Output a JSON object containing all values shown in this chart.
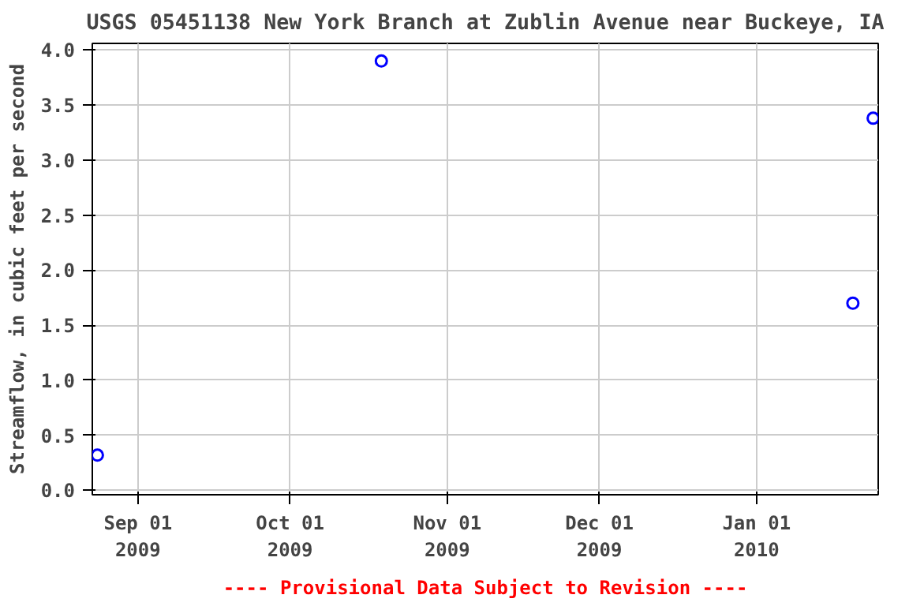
{
  "chart_data": {
    "type": "scatter",
    "title": "USGS 05451138 New York Branch at Zublin Avenue near Buckeye, IA",
    "ylabel": "Streamflow, in cubic feet per second",
    "x": [
      "2009-08-24",
      "2009-10-19",
      "2010-01-20",
      "2010-01-24"
    ],
    "series": [
      {
        "color": "#0000ff",
        "values": [
          0.32,
          3.9,
          1.7,
          3.38
        ]
      }
    ],
    "marker": "circle",
    "grid": true,
    "xlim": [
      "2009-08-23",
      "2010-01-25"
    ],
    "xticks": [
      {
        "value": "2009-09-01",
        "label": "Sep 01\n2009"
      },
      {
        "value": "2009-10-01",
        "label": "Oct 01\n2009"
      },
      {
        "value": "2009-11-01",
        "label": "Nov 01\n2009"
      },
      {
        "value": "2009-12-01",
        "label": "Dec 01\n2009"
      },
      {
        "value": "2010-01-01",
        "label": "Jan 01\n2010"
      }
    ],
    "ylim": [
      -0.04,
      4.06
    ],
    "yticks": [
      {
        "value": 0,
        "label": "0.0"
      },
      {
        "value": 0.5,
        "label": "0.5"
      },
      {
        "value": 1,
        "label": "1.0"
      },
      {
        "value": 1.5,
        "label": "1.5"
      },
      {
        "value": 2,
        "label": "2.0"
      },
      {
        "value": 2.5,
        "label": "2.5"
      },
      {
        "value": 3,
        "label": "3.0"
      },
      {
        "value": 3.5,
        "label": "3.5"
      },
      {
        "value": 4,
        "label": "4.0"
      }
    ],
    "annotations": [
      "---- Provisional Data Subject to Revision ----"
    ]
  }
}
